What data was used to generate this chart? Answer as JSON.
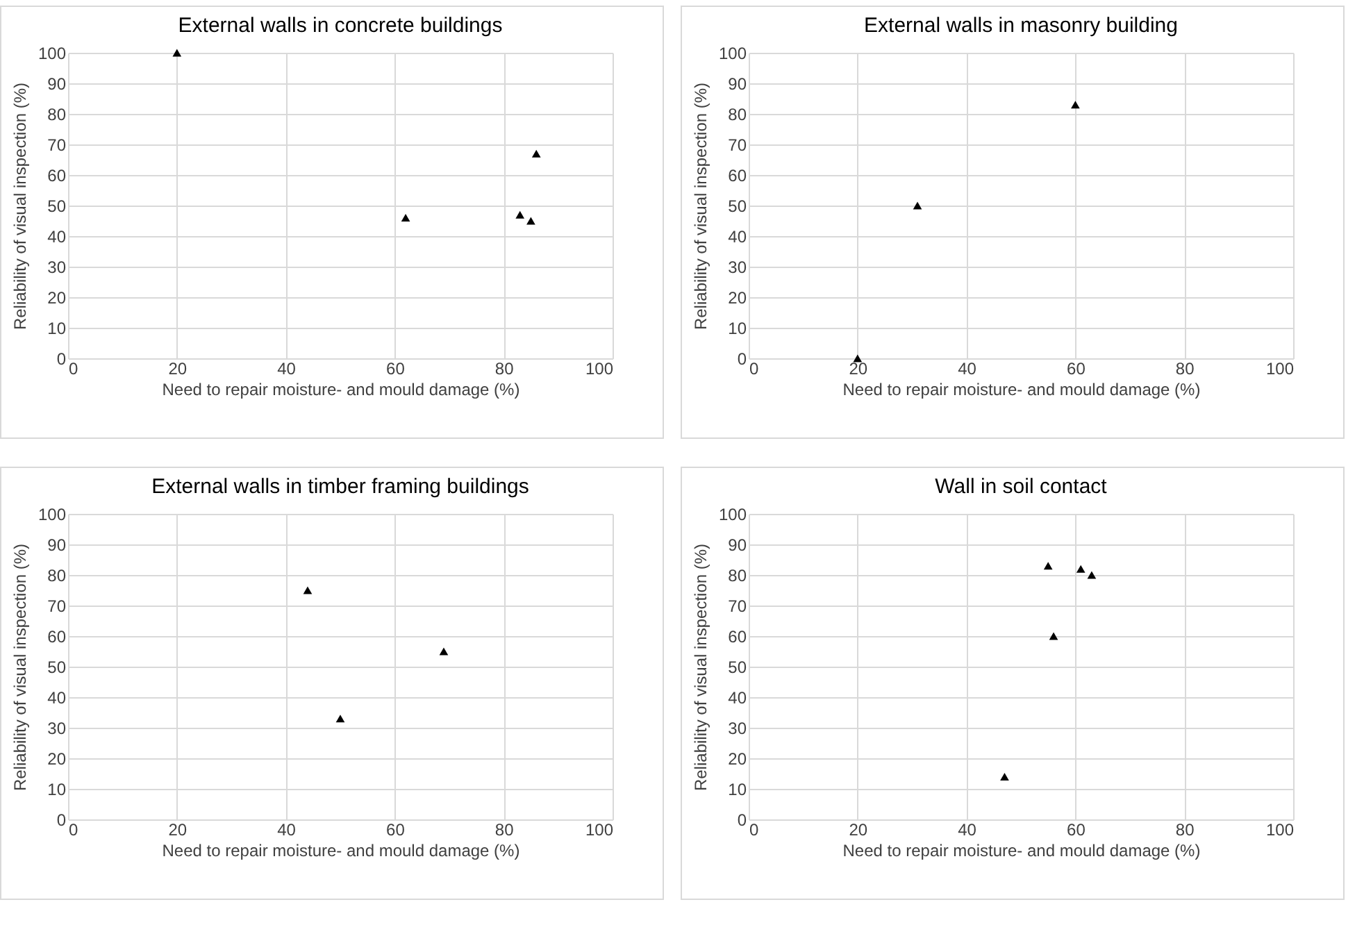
{
  "chart_data": [
    {
      "type": "scatter",
      "title": "External walls in concrete buildings",
      "xlabel": "Need to repair moisture- and mould damage (%)",
      "ylabel": "Reliability of visual inspection (%)",
      "x": [
        20,
        62,
        83,
        85,
        86
      ],
      "values": [
        100,
        46,
        47,
        45,
        67
      ],
      "color": "#000000",
      "marker": "triangle",
      "xlim": [
        0,
        100
      ],
      "ylim": [
        0,
        100
      ],
      "xticks": [
        0,
        20,
        40,
        60,
        80,
        100
      ],
      "yticks": [
        0,
        10,
        20,
        30,
        40,
        50,
        60,
        70,
        80,
        90,
        100
      ],
      "grid": true
    },
    {
      "type": "scatter",
      "title": "External walls in masonry building",
      "xlabel": "Need to repair moisture- and mould damage (%)",
      "ylabel": "Reliability of visual inspection (%)",
      "x": [
        20,
        31,
        60
      ],
      "values": [
        0,
        50,
        83
      ],
      "color": "#000000",
      "marker": "triangle",
      "xlim": [
        0,
        100
      ],
      "ylim": [
        0,
        100
      ],
      "xticks": [
        0,
        20,
        40,
        60,
        80,
        100
      ],
      "yticks": [
        0,
        10,
        20,
        30,
        40,
        50,
        60,
        70,
        80,
        90,
        100
      ],
      "grid": true
    },
    {
      "type": "scatter",
      "title": "External walls in timber framing buildings",
      "xlabel": "Need to repair moisture- and mould damage (%)",
      "ylabel": "Reliability of visual inspection (%)",
      "x": [
        44,
        50,
        69
      ],
      "values": [
        75,
        33,
        55
      ],
      "color": "#000000",
      "marker": "triangle",
      "xlim": [
        0,
        100
      ],
      "ylim": [
        0,
        100
      ],
      "xticks": [
        0,
        20,
        40,
        60,
        80,
        100
      ],
      "yticks": [
        0,
        10,
        20,
        30,
        40,
        50,
        60,
        70,
        80,
        90,
        100
      ],
      "grid": true
    },
    {
      "type": "scatter",
      "title": "Wall in soil contact",
      "xlabel": "Need to repair moisture- and mould damage (%)",
      "ylabel": "Reliability of visual inspection (%)",
      "x": [
        47,
        55,
        56,
        61,
        63
      ],
      "values": [
        14,
        83,
        60,
        82,
        80
      ],
      "color": "#000000",
      "marker": "triangle",
      "xlim": [
        0,
        100
      ],
      "ylim": [
        0,
        100
      ],
      "xticks": [
        0,
        20,
        40,
        60,
        80,
        100
      ],
      "yticks": [
        0,
        10,
        20,
        30,
        40,
        50,
        60,
        70,
        80,
        90,
        100
      ],
      "grid": true
    }
  ]
}
